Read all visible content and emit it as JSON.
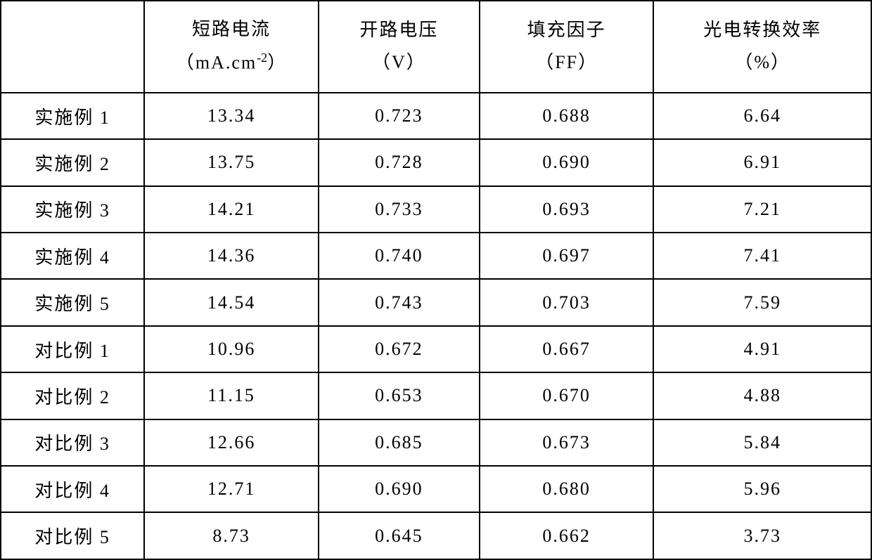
{
  "table": {
    "headers": [
      {
        "line1": "",
        "line2": ""
      },
      {
        "line1": "短路电流",
        "line2_prefix": "（mA.cm",
        "line2_sup": "-2",
        "line2_suffix": "）"
      },
      {
        "line1": "开路电压",
        "line2": "（V）"
      },
      {
        "line1": "填充因子",
        "line2": "（FF）"
      },
      {
        "line1": "光电转换效率",
        "line2": "（%）"
      }
    ],
    "rows": [
      {
        "label": "实施例 1",
        "short_circuit_current": "13.34",
        "open_circuit_voltage": "0.723",
        "fill_factor": "0.688",
        "efficiency": "6.64"
      },
      {
        "label": "实施例 2",
        "short_circuit_current": "13.75",
        "open_circuit_voltage": "0.728",
        "fill_factor": "0.690",
        "efficiency": "6.91"
      },
      {
        "label": "实施例 3",
        "short_circuit_current": "14.21",
        "open_circuit_voltage": "0.733",
        "fill_factor": "0.693",
        "efficiency": "7.21"
      },
      {
        "label": "实施例 4",
        "short_circuit_current": "14.36",
        "open_circuit_voltage": "0.740",
        "fill_factor": "0.697",
        "efficiency": "7.41"
      },
      {
        "label": "实施例 5",
        "short_circuit_current": "14.54",
        "open_circuit_voltage": "0.743",
        "fill_factor": "0.703",
        "efficiency": "7.59"
      },
      {
        "label": "对比例 1",
        "short_circuit_current": "10.96",
        "open_circuit_voltage": "0.672",
        "fill_factor": "0.667",
        "efficiency": "4.91"
      },
      {
        "label": "对比例 2",
        "short_circuit_current": "11.15",
        "open_circuit_voltage": "0.653",
        "fill_factor": "0.670",
        "efficiency": "4.88"
      },
      {
        "label": "对比例 3",
        "short_circuit_current": "12.66",
        "open_circuit_voltage": "0.685",
        "fill_factor": "0.673",
        "efficiency": "5.84"
      },
      {
        "label": "对比例 4",
        "short_circuit_current": "12.71",
        "open_circuit_voltage": "0.690",
        "fill_factor": "0.680",
        "efficiency": "5.96"
      },
      {
        "label": "对比例 5",
        "short_circuit_current": "8.73",
        "open_circuit_voltage": "0.645",
        "fill_factor": "0.662",
        "efficiency": "3.73"
      }
    ],
    "styling": {
      "border_color": "#000000",
      "border_width": 2,
      "background_color": "#ffffff",
      "text_color": "#000000",
      "font_family": "SimSun",
      "font_size": 26,
      "header_row_height": 130,
      "data_row_height": 66,
      "column_widths_pct": [
        16.5,
        20,
        18.5,
        20,
        25
      ],
      "text_align": "center",
      "letter_spacing": 2
    }
  }
}
